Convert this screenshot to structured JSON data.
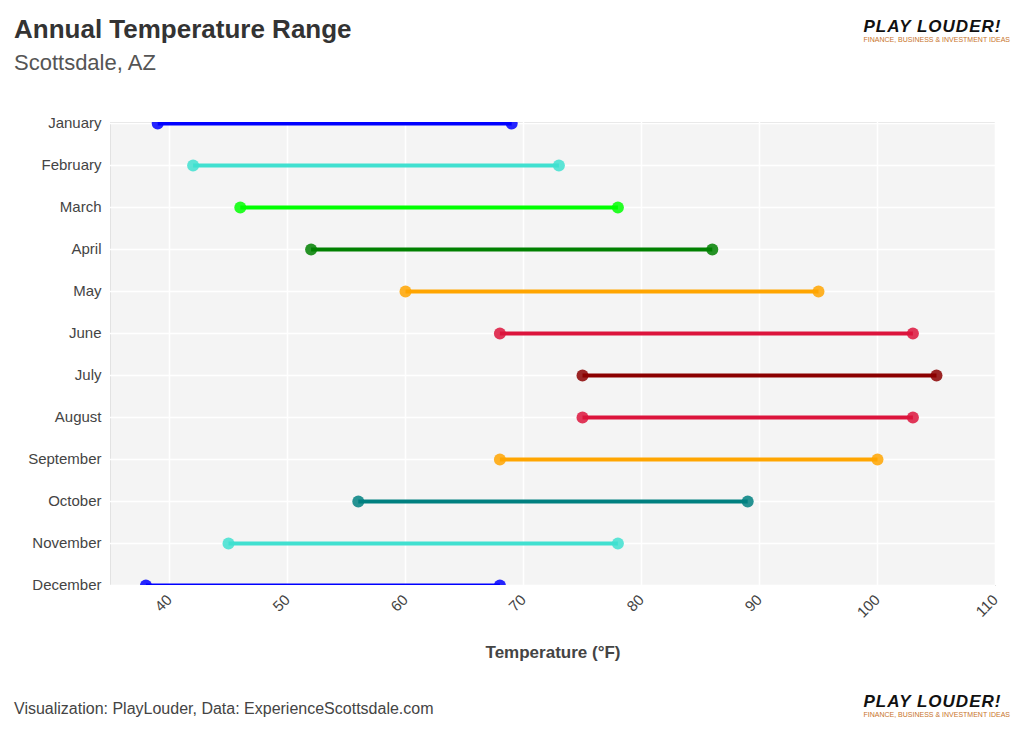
{
  "chart_data": {
    "type": "dumbbell",
    "title": "Annual Temperature Range",
    "subtitle": "Scottsdale, AZ",
    "caption": "Visualization: PlayLouder, Data: ExperienceScottsdale.com",
    "annotations": [
      "PLAY LOUDER!",
      "FINANCE, BUSINESS & INVESTMENT IDEAS"
    ],
    "x_label": "Temperature (°F)",
    "orientation": "horizontal",
    "categories": [
      "January",
      "February",
      "March",
      "April",
      "May",
      "June",
      "July",
      "August",
      "September",
      "October",
      "November",
      "December"
    ],
    "low": [
      39,
      42,
      46,
      52,
      60,
      68,
      75,
      75,
      68,
      56,
      45,
      38
    ],
    "high": [
      69,
      73,
      78,
      86,
      95,
      103,
      105,
      103,
      100,
      89,
      78,
      68
    ],
    "colors": [
      "#0000ff",
      "#40e0d0",
      "#00ff00",
      "#008000",
      "#ffa500",
      "#dc143c",
      "#8b0000",
      "#dc143c",
      "#ffa500",
      "#008080",
      "#40e0d0",
      "#0000ff"
    ],
    "xlim": [
      35,
      110
    ],
    "xticks": [
      40,
      50,
      60,
      70,
      80,
      90,
      100,
      110
    ],
    "grid": true
  }
}
